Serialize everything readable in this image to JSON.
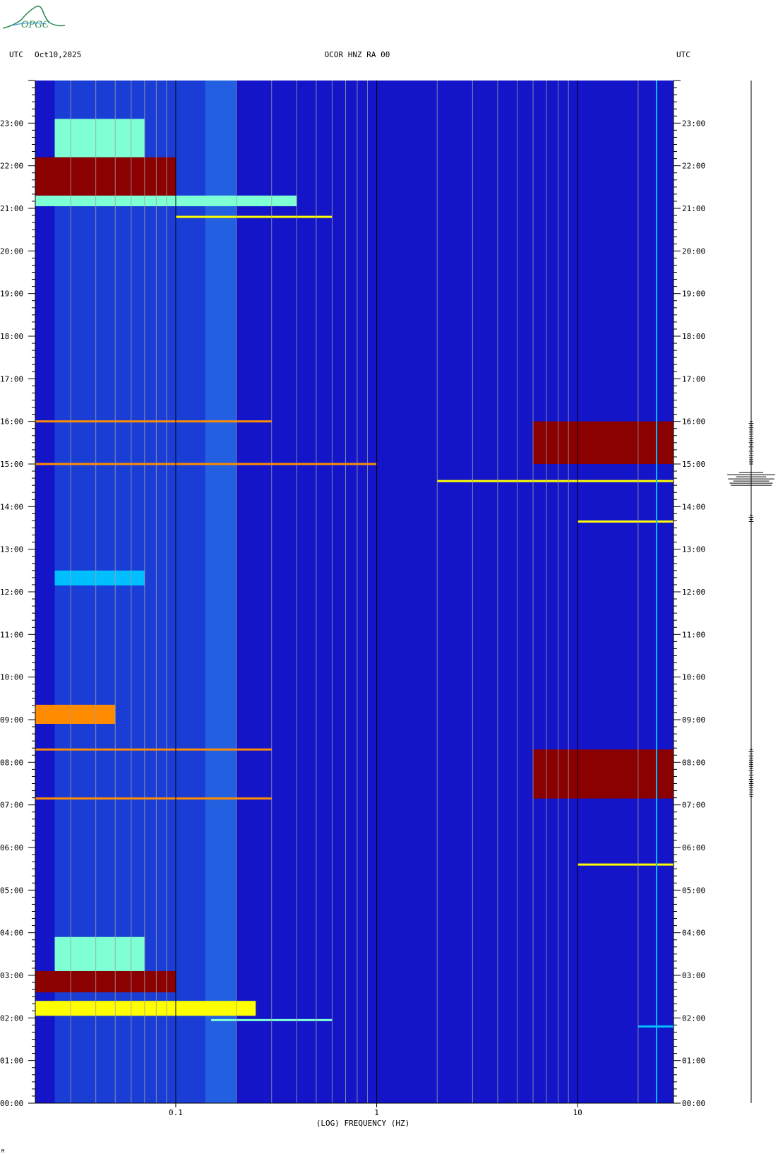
{
  "logo": {
    "text": "OPGC",
    "icon": "volcano-logo-icon",
    "color": "#2e8b57"
  },
  "header": {
    "left_tz": "UTC",
    "date": "Oct10,2025",
    "station": "OCOR HNZ RA 00",
    "right_tz": "UTC"
  },
  "chart_data": {
    "type": "heatmap",
    "title": "OCOR HNZ RA 00",
    "xlabel": "(LOG) FREQUENCY (HZ)",
    "ylabel": "",
    "x_scale": "log",
    "xlim": [
      0.02,
      30
    ],
    "ylim_hours": [
      0,
      24
    ],
    "x_tick_labels": [
      {
        "value": 0.1,
        "label": "0.1"
      },
      {
        "value": 1,
        "label": "1"
      },
      {
        "value": 10,
        "label": "10"
      }
    ],
    "y_tick_labels": [
      "00:00",
      "01:00",
      "02:00",
      "03:00",
      "04:00",
      "05:00",
      "06:00",
      "07:00",
      "08:00",
      "09:00",
      "10:00",
      "11:00",
      "12:00",
      "13:00",
      "14:00",
      "15:00",
      "16:00",
      "17:00",
      "18:00",
      "19:00",
      "20:00",
      "21:00",
      "22:00",
      "23:00"
    ],
    "colormap": [
      "#00008b",
      "#0000ff",
      "#00bfff",
      "#7fffd4",
      "#ffff00",
      "#ff8c00",
      "#8b0000"
    ],
    "background_color": "#1414c8",
    "energy_bursts": [
      {
        "t0": 21.05,
        "t1": 21.3,
        "f0": 0.02,
        "f1": 0.4,
        "level": 0.55
      },
      {
        "t0": 21.3,
        "t1": 22.2,
        "f0": 0.02,
        "f1": 0.1,
        "level": 1.0
      },
      {
        "t0": 22.2,
        "t1": 23.1,
        "f0": 0.025,
        "f1": 0.07,
        "level": 0.55
      },
      {
        "t0": 2.05,
        "t1": 2.4,
        "f0": 0.02,
        "f1": 0.25,
        "level": 0.6
      },
      {
        "t0": 2.6,
        "t1": 3.1,
        "f0": 0.02,
        "f1": 0.1,
        "level": 1.0
      },
      {
        "t0": 3.1,
        "t1": 3.9,
        "f0": 0.025,
        "f1": 0.07,
        "level": 0.5
      },
      {
        "t0": 8.9,
        "t1": 9.35,
        "f0": 0.02,
        "f1": 0.05,
        "level": 0.9
      },
      {
        "t0": 12.15,
        "t1": 12.5,
        "f0": 0.025,
        "f1": 0.07,
        "level": 0.35
      },
      {
        "t0": 15.0,
        "t1": 16.0,
        "f0": 6,
        "f1": 30,
        "level": 1.0
      },
      {
        "t0": 7.15,
        "t1": 8.3,
        "f0": 6,
        "f1": 30,
        "level": 1.0
      }
    ],
    "line_events": [
      {
        "t": 16.0,
        "f0": 0.02,
        "f1": 0.3,
        "level": 0.85
      },
      {
        "t": 15.0,
        "f0": 0.02,
        "f1": 1.0,
        "level": 0.8
      },
      {
        "t": 14.6,
        "f0": 2.0,
        "f1": 30,
        "level": 0.6
      },
      {
        "t": 13.65,
        "f0": 10,
        "f1": 30,
        "level": 0.7
      },
      {
        "t": 8.3,
        "f0": 0.02,
        "f1": 0.3,
        "level": 0.85
      },
      {
        "t": 7.15,
        "f0": 0.02,
        "f1": 0.3,
        "level": 0.85
      },
      {
        "t": 5.6,
        "f0": 10,
        "f1": 30,
        "level": 0.6
      },
      {
        "t": 20.8,
        "f0": 0.1,
        "f1": 0.6,
        "level": 0.6
      },
      {
        "t": 1.95,
        "f0": 0.15,
        "f1": 0.6,
        "level": 0.5
      },
      {
        "t": 1.8,
        "f0": 20,
        "f1": 30,
        "level": 0.4
      }
    ],
    "seismogram": {
      "events": [
        {
          "t0": 15.0,
          "t1": 16.0,
          "amp": 0.1
        },
        {
          "t0": 14.5,
          "t1": 14.8,
          "amp": 1.0
        },
        {
          "t0": 7.2,
          "t1": 8.3,
          "amp": 0.1
        },
        {
          "t0": 13.65,
          "t1": 13.8,
          "amp": 0.1
        }
      ]
    }
  },
  "footer": {
    "mark": "M"
  }
}
